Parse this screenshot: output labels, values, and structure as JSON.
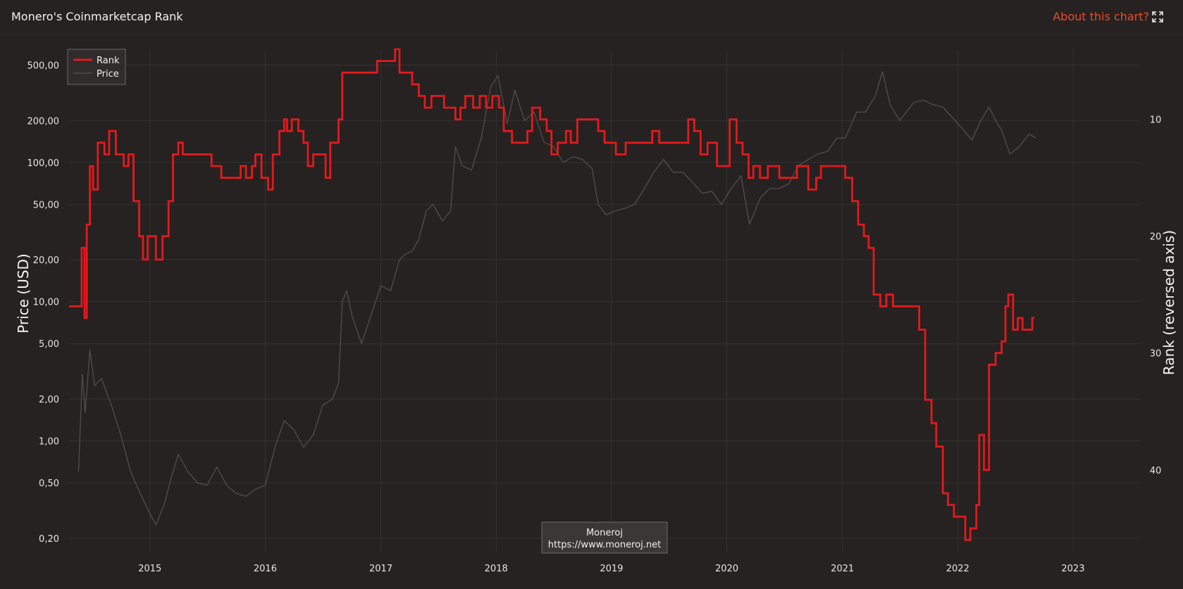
{
  "header": {
    "title": "Monero's Coinmarketcap Rank",
    "about_label": "About this chart?",
    "expand_icon": "expand-icon"
  },
  "colors": {
    "background": "#252221",
    "rank": "#e3191c",
    "price": "#4f4b4a",
    "grid": "#353231",
    "accent": "#f04a2a"
  },
  "chart_data": {
    "type": "line",
    "title": "Monero's Coinmarketcap Rank",
    "y_left": {
      "label": "Price (USD)",
      "scale": "log",
      "range": [
        0.16,
        650
      ],
      "ticks": [
        500,
        200,
        100,
        50,
        20,
        10,
        5,
        2,
        1,
        0.5,
        0.2
      ],
      "tick_labels": [
        "500,00",
        "200,00",
        "100,00",
        "50,00",
        "20,00",
        "10,00",
        "5,00",
        "2,00",
        "1,00",
        "0,50",
        "0,20"
      ]
    },
    "y_right": {
      "label": "Rank (reversed axis)",
      "reversed": true,
      "range": [
        4,
        47
      ],
      "ticks": [
        10,
        20,
        30,
        40
      ],
      "tick_labels": [
        "10",
        "20",
        "30",
        "40"
      ]
    },
    "x": {
      "range": [
        "2014-04-20",
        "2023-08-01"
      ],
      "ticks": [
        "2015-01-01",
        "2016-01-01",
        "2017-01-01",
        "2018-01-01",
        "2019-01-01",
        "2020-01-01",
        "2021-01-01",
        "2022-01-01",
        "2023-01-01"
      ],
      "tick_labels": [
        "2015",
        "2016",
        "2017",
        "2018",
        "2019",
        "2020",
        "2021",
        "2022",
        "2023"
      ]
    },
    "legend": {
      "position": "top-left"
    },
    "watermark": {
      "line1": "Moneroj",
      "line2": "https://www.moneroj.net"
    },
    "series": [
      {
        "name": "Rank",
        "axis": "right",
        "step": true,
        "points": [
          [
            "2014-05-20",
            26
          ],
          [
            "2014-05-30",
            21
          ],
          [
            "2014-06-08",
            27
          ],
          [
            "2014-06-15",
            19
          ],
          [
            "2014-06-25",
            14
          ],
          [
            "2014-07-05",
            16
          ],
          [
            "2014-07-20",
            12
          ],
          [
            "2014-08-10",
            13
          ],
          [
            "2014-08-25",
            11
          ],
          [
            "2014-09-15",
            13
          ],
          [
            "2014-10-10",
            14
          ],
          [
            "2014-10-25",
            13
          ],
          [
            "2014-11-10",
            17
          ],
          [
            "2014-11-28",
            20
          ],
          [
            "2014-12-10",
            22
          ],
          [
            "2014-12-25",
            20
          ],
          [
            "2015-01-20",
            22
          ],
          [
            "2015-02-10",
            20
          ],
          [
            "2015-03-01",
            17
          ],
          [
            "2015-03-15",
            13
          ],
          [
            "2015-04-01",
            12
          ],
          [
            "2015-04-15",
            13
          ],
          [
            "2015-05-15",
            13
          ],
          [
            "2015-06-01",
            13
          ],
          [
            "2015-06-15",
            13
          ],
          [
            "2015-07-15",
            14
          ],
          [
            "2015-08-15",
            15
          ],
          [
            "2015-09-15",
            15
          ],
          [
            "2015-10-01",
            15
          ],
          [
            "2015-10-15",
            14
          ],
          [
            "2015-11-01",
            15
          ],
          [
            "2015-11-20",
            14
          ],
          [
            "2015-12-01",
            13
          ],
          [
            "2015-12-20",
            15
          ],
          [
            "2016-01-10",
            16
          ],
          [
            "2016-01-25",
            13
          ],
          [
            "2016-02-15",
            11
          ],
          [
            "2016-03-01",
            10
          ],
          [
            "2016-03-10",
            11
          ],
          [
            "2016-03-25",
            10
          ],
          [
            "2016-04-15",
            11
          ],
          [
            "2016-05-01",
            12
          ],
          [
            "2016-05-15",
            14
          ],
          [
            "2016-06-01",
            13
          ],
          [
            "2016-06-20",
            13
          ],
          [
            "2016-07-10",
            15
          ],
          [
            "2016-07-25",
            12
          ],
          [
            "2016-08-20",
            10
          ],
          [
            "2016-09-01",
            6
          ],
          [
            "2016-10-01",
            6
          ],
          [
            "2016-11-20",
            6
          ],
          [
            "2016-12-20",
            5
          ],
          [
            "2017-01-20",
            5
          ],
          [
            "2017-02-15",
            4
          ],
          [
            "2017-03-01",
            6
          ],
          [
            "2017-04-10",
            7
          ],
          [
            "2017-05-01",
            8
          ],
          [
            "2017-05-20",
            9
          ],
          [
            "2017-06-10",
            8
          ],
          [
            "2017-07-20",
            9
          ],
          [
            "2017-08-10",
            9
          ],
          [
            "2017-08-25",
            10
          ],
          [
            "2017-09-10",
            9
          ],
          [
            "2017-09-25",
            8
          ],
          [
            "2017-10-20",
            9
          ],
          [
            "2017-11-10",
            8
          ],
          [
            "2017-11-30",
            9
          ],
          [
            "2017-12-20",
            8
          ],
          [
            "2018-01-10",
            9
          ],
          [
            "2018-01-25",
            11
          ],
          [
            "2018-02-20",
            12
          ],
          [
            "2018-03-20",
            12
          ],
          [
            "2018-04-10",
            11
          ],
          [
            "2018-04-25",
            9
          ],
          [
            "2018-05-20",
            10
          ],
          [
            "2018-06-10",
            11
          ],
          [
            "2018-06-25",
            13
          ],
          [
            "2018-07-15",
            12
          ],
          [
            "2018-08-10",
            11
          ],
          [
            "2018-08-25",
            12
          ],
          [
            "2018-09-15",
            10
          ],
          [
            "2018-10-10",
            10
          ],
          [
            "2018-11-01",
            10
          ],
          [
            "2018-11-20",
            11
          ],
          [
            "2018-12-10",
            12
          ],
          [
            "2019-01-15",
            13
          ],
          [
            "2019-02-15",
            12
          ],
          [
            "2019-03-15",
            12
          ],
          [
            "2019-04-15",
            12
          ],
          [
            "2019-05-10",
            11
          ],
          [
            "2019-06-01",
            12
          ],
          [
            "2019-07-01",
            12
          ],
          [
            "2019-08-01",
            12
          ],
          [
            "2019-09-01",
            10
          ],
          [
            "2019-09-20",
            11
          ],
          [
            "2019-10-10",
            13
          ],
          [
            "2019-11-01",
            12
          ],
          [
            "2019-12-01",
            14
          ],
          [
            "2020-01-10",
            10
          ],
          [
            "2020-02-01",
            12
          ],
          [
            "2020-02-20",
            13
          ],
          [
            "2020-03-10",
            15
          ],
          [
            "2020-03-25",
            14
          ],
          [
            "2020-04-15",
            15
          ],
          [
            "2020-05-10",
            14
          ],
          [
            "2020-06-15",
            15
          ],
          [
            "2020-07-15",
            15
          ],
          [
            "2020-08-10",
            14
          ],
          [
            "2020-09-15",
            16
          ],
          [
            "2020-10-10",
            15
          ],
          [
            "2020-10-25",
            14
          ],
          [
            "2020-11-20",
            14
          ],
          [
            "2020-12-10",
            14
          ],
          [
            "2021-01-10",
            15
          ],
          [
            "2021-02-01",
            17
          ],
          [
            "2021-02-20",
            19
          ],
          [
            "2021-03-10",
            20
          ],
          [
            "2021-03-25",
            21
          ],
          [
            "2021-04-10",
            25
          ],
          [
            "2021-05-01",
            26
          ],
          [
            "2021-05-20",
            25
          ],
          [
            "2021-06-10",
            26
          ],
          [
            "2021-07-01",
            26
          ],
          [
            "2021-07-25",
            26
          ],
          [
            "2021-08-15",
            26
          ],
          [
            "2021-09-01",
            28
          ],
          [
            "2021-09-20",
            34
          ],
          [
            "2021-10-10",
            36
          ],
          [
            "2021-10-25",
            38
          ],
          [
            "2021-11-15",
            42
          ],
          [
            "2021-12-01",
            43
          ],
          [
            "2021-12-20",
            44
          ],
          [
            "2022-01-10",
            44
          ],
          [
            "2022-01-25",
            46
          ],
          [
            "2022-02-10",
            45
          ],
          [
            "2022-03-01",
            43
          ],
          [
            "2022-03-10",
            37
          ],
          [
            "2022-03-25",
            40
          ],
          [
            "2022-04-10",
            31
          ],
          [
            "2022-05-01",
            30
          ],
          [
            "2022-05-20",
            29
          ],
          [
            "2022-06-01",
            26
          ],
          [
            "2022-06-10",
            25
          ],
          [
            "2022-06-25",
            28
          ],
          [
            "2022-07-10",
            27
          ],
          [
            "2022-07-25",
            28
          ],
          [
            "2022-08-10",
            28
          ],
          [
            "2022-08-25",
            27
          ],
          [
            "2022-09-01",
            27
          ]
        ]
      },
      {
        "name": "Price",
        "axis": "left",
        "points": [
          [
            "2014-05-20",
            0.6
          ],
          [
            "2014-06-01",
            3
          ],
          [
            "2014-06-10",
            1.6
          ],
          [
            "2014-06-25",
            4.5
          ],
          [
            "2014-07-10",
            2.5
          ],
          [
            "2014-08-01",
            2.8
          ],
          [
            "2014-09-01",
            1.8
          ],
          [
            "2014-10-01",
            1.1
          ],
          [
            "2014-11-01",
            0.6
          ],
          [
            "2014-12-01",
            0.42
          ],
          [
            "2015-01-01",
            0.3
          ],
          [
            "2015-01-20",
            0.25
          ],
          [
            "2015-02-15",
            0.35
          ],
          [
            "2015-03-10",
            0.55
          ],
          [
            "2015-04-01",
            0.8
          ],
          [
            "2015-05-01",
            0.6
          ],
          [
            "2015-06-01",
            0.5
          ],
          [
            "2015-07-01",
            0.48
          ],
          [
            "2015-08-01",
            0.65
          ],
          [
            "2015-09-01",
            0.48
          ],
          [
            "2015-10-01",
            0.42
          ],
          [
            "2015-11-01",
            0.4
          ],
          [
            "2015-12-01",
            0.45
          ],
          [
            "2016-01-01",
            0.48
          ],
          [
            "2016-02-01",
            0.9
          ],
          [
            "2016-03-01",
            1.4
          ],
          [
            "2016-04-01",
            1.2
          ],
          [
            "2016-05-01",
            0.9
          ],
          [
            "2016-06-01",
            1.1
          ],
          [
            "2016-07-01",
            1.8
          ],
          [
            "2016-08-01",
            2.0
          ],
          [
            "2016-08-20",
            2.6
          ],
          [
            "2016-09-01",
            10
          ],
          [
            "2016-09-15",
            12
          ],
          [
            "2016-10-01",
            8
          ],
          [
            "2016-10-20",
            6
          ],
          [
            "2016-11-01",
            5
          ],
          [
            "2016-12-01",
            8
          ],
          [
            "2017-01-01",
            13
          ],
          [
            "2017-02-01",
            12
          ],
          [
            "2017-03-01",
            20
          ],
          [
            "2017-03-20",
            22
          ],
          [
            "2017-04-10",
            23
          ],
          [
            "2017-05-01",
            28
          ],
          [
            "2017-05-25",
            45
          ],
          [
            "2017-06-15",
            50
          ],
          [
            "2017-07-15",
            38
          ],
          [
            "2017-08-10",
            45
          ],
          [
            "2017-08-25",
            130
          ],
          [
            "2017-09-15",
            95
          ],
          [
            "2017-10-15",
            88
          ],
          [
            "2017-11-15",
            150
          ],
          [
            "2017-12-15",
            350
          ],
          [
            "2018-01-07",
            420
          ],
          [
            "2018-02-05",
            190
          ],
          [
            "2018-03-01",
            330
          ],
          [
            "2018-04-01",
            200
          ],
          [
            "2018-05-01",
            230
          ],
          [
            "2018-06-01",
            140
          ],
          [
            "2018-07-01",
            130
          ],
          [
            "2018-08-01",
            100
          ],
          [
            "2018-09-01",
            110
          ],
          [
            "2018-10-01",
            105
          ],
          [
            "2018-11-01",
            90
          ],
          [
            "2018-11-20",
            50
          ],
          [
            "2018-12-15",
            42
          ],
          [
            "2019-01-15",
            45
          ],
          [
            "2019-02-15",
            47
          ],
          [
            "2019-03-15",
            50
          ],
          [
            "2019-04-15",
            65
          ],
          [
            "2019-05-15",
            85
          ],
          [
            "2019-06-15",
            105
          ],
          [
            "2019-07-15",
            85
          ],
          [
            "2019-08-15",
            85
          ],
          [
            "2019-09-15",
            72
          ],
          [
            "2019-10-15",
            60
          ],
          [
            "2019-11-15",
            62
          ],
          [
            "2019-12-15",
            50
          ],
          [
            "2020-01-15",
            65
          ],
          [
            "2020-02-15",
            80
          ],
          [
            "2020-03-13",
            36
          ],
          [
            "2020-04-15",
            55
          ],
          [
            "2020-05-15",
            65
          ],
          [
            "2020-06-15",
            65
          ],
          [
            "2020-07-15",
            70
          ],
          [
            "2020-08-15",
            95
          ],
          [
            "2020-09-15",
            105
          ],
          [
            "2020-10-15",
            115
          ],
          [
            "2020-11-15",
            120
          ],
          [
            "2020-12-15",
            150
          ],
          [
            "2021-01-10",
            150
          ],
          [
            "2021-02-15",
            230
          ],
          [
            "2021-03-15",
            230
          ],
          [
            "2021-04-15",
            300
          ],
          [
            "2021-05-08",
            450
          ],
          [
            "2021-06-01",
            260
          ],
          [
            "2021-07-01",
            200
          ],
          [
            "2021-08-15",
            270
          ],
          [
            "2021-09-15",
            280
          ],
          [
            "2021-10-15",
            260
          ],
          [
            "2021-11-15",
            250
          ],
          [
            "2021-12-15",
            210
          ],
          [
            "2022-01-15",
            175
          ],
          [
            "2022-02-15",
            145
          ],
          [
            "2022-03-15",
            200
          ],
          [
            "2022-04-10",
            250
          ],
          [
            "2022-05-01",
            200
          ],
          [
            "2022-05-20",
            170
          ],
          [
            "2022-06-15",
            115
          ],
          [
            "2022-07-15",
            130
          ],
          [
            "2022-08-15",
            160
          ],
          [
            "2022-09-05",
            150
          ]
        ]
      }
    ]
  }
}
